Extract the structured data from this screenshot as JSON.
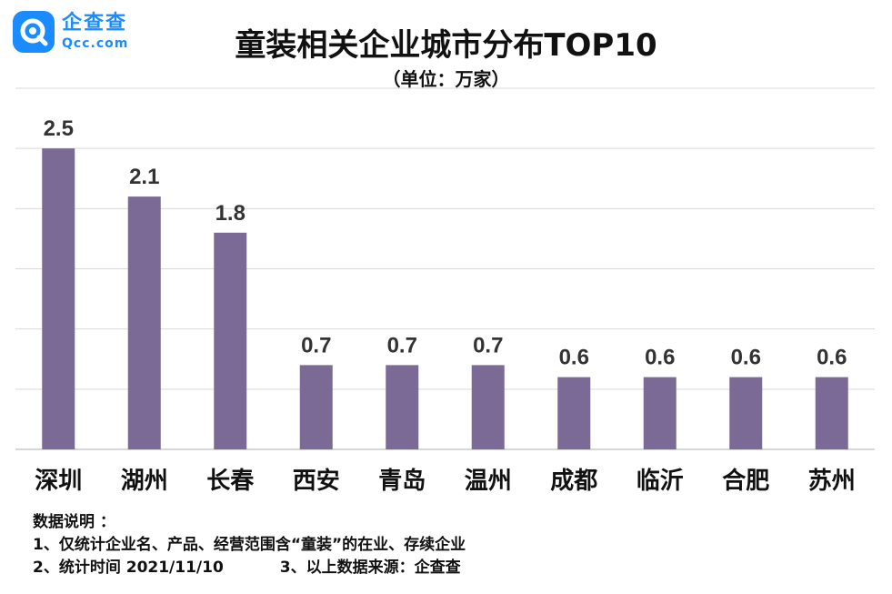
{
  "logo": {
    "name_cn": "企查查",
    "name_en": "Qcc.com"
  },
  "title": "童装相关企业城市分布TOP10",
  "unit": "（单位：万家）",
  "chart_data": {
    "type": "bar",
    "title": "童装相关企业城市分布TOP10",
    "unit": "（单位：万家）",
    "categories": [
      "深圳",
      "湖州",
      "长春",
      "西安",
      "青岛",
      "温州",
      "成都",
      "临沂",
      "合肥",
      "苏州"
    ],
    "values": [
      2.5,
      2.1,
      1.8,
      0.7,
      0.7,
      0.7,
      0.6,
      0.6,
      0.6,
      0.6
    ],
    "value_labels": [
      "2.5",
      "2.1",
      "1.8",
      "0.7",
      "0.7",
      "0.7",
      "0.6",
      "0.6",
      "0.6",
      "0.6"
    ],
    "ylim": [
      0,
      3.0
    ],
    "grid": true,
    "bar_color": "#7b6a96",
    "grid_color": "#d9d9d9"
  },
  "notes": {
    "heading": "数据说明 ：",
    "line1": "1、仅统计企业名、产品、经营范围含“童装”的在业、存续企业",
    "line2a": "2、统计时间 2021/11/10",
    "line2b": "3、以上数据来源：企查查"
  }
}
